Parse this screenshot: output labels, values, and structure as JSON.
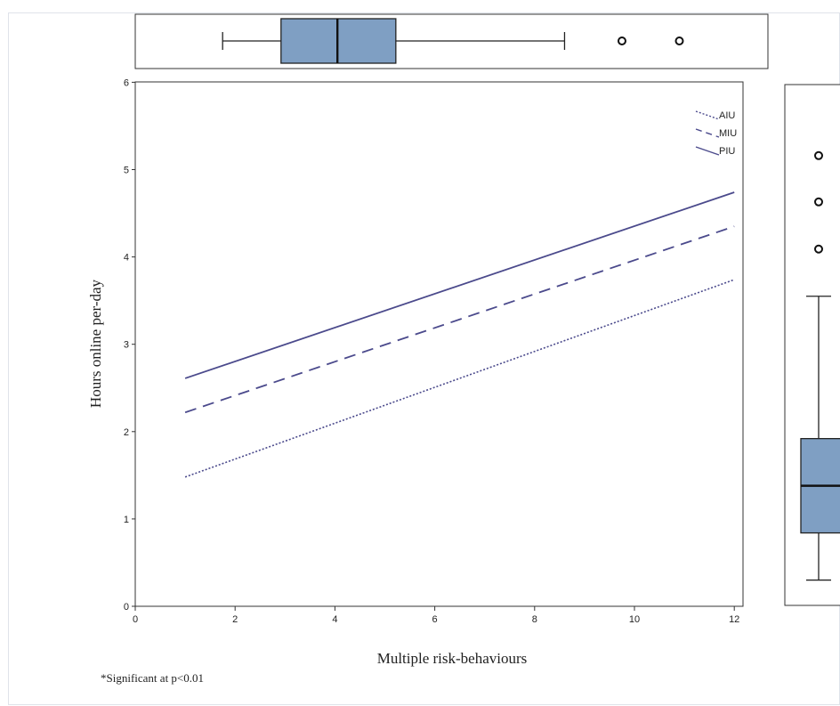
{
  "chart_data": [
    {
      "type": "line",
      "title": "",
      "xlabel": "Multiple risk-behaviours",
      "ylabel": "Hours online per-day",
      "xlim": [
        0,
        12.5
      ],
      "ylim": [
        0,
        6
      ],
      "x_ticks": [
        0,
        2,
        4,
        6,
        8,
        10,
        12
      ],
      "y_ticks": [
        0,
        1,
        2,
        3,
        4,
        5,
        6
      ],
      "grid": false,
      "legend_position": "top-right",
      "series": [
        {
          "name": "AIU",
          "style": "dotted",
          "color": "#4b4a8c",
          "x": [
            1,
            12
          ],
          "y": [
            1.48,
            3.74
          ]
        },
        {
          "name": "MIU",
          "style": "dashed",
          "color": "#4b4a8c",
          "x": [
            1,
            12
          ],
          "y": [
            2.22,
            4.35
          ]
        },
        {
          "name": "PIU",
          "style": "solid",
          "color": "#4b4a8c",
          "x": [
            1,
            12
          ],
          "y": [
            2.61,
            4.74
          ]
        }
      ]
    },
    {
      "type": "boxplot",
      "orientation": "horizontal",
      "variable": "Multiple risk-behaviours",
      "min": 1.75,
      "q1": 2.92,
      "median": 4.05,
      "q3": 5.22,
      "max": 8.6,
      "outliers": [
        9.75,
        10.9
      ],
      "box_color": "#7f9fc3"
    },
    {
      "type": "boxplot",
      "orientation": "vertical",
      "variable": "Hours online per-day",
      "min": 0.3,
      "q1": 0.84,
      "median": 1.38,
      "q3": 1.92,
      "max": 3.55,
      "outliers": [
        4.09,
        4.63,
        5.16
      ],
      "box_color": "#7f9fc3"
    }
  ],
  "footnote": "*Significant at p<0.01"
}
